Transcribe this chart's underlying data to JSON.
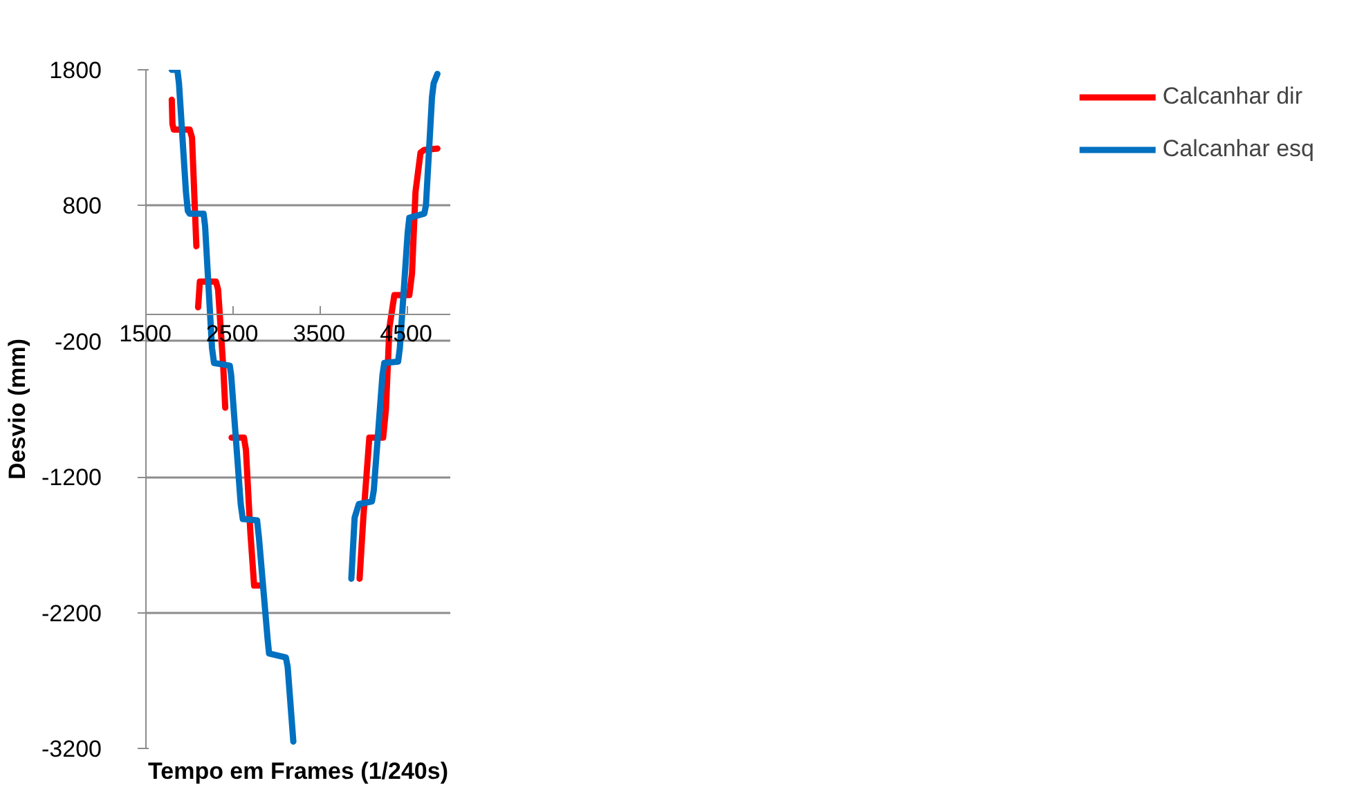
{
  "chart_data": {
    "type": "line",
    "xlabel": "Tempo em Frames (1/240s)",
    "ylabel": "Desvio (mm)",
    "xlim": [
      1500,
      5000
    ],
    "xticks": [
      1500,
      2500,
      3500,
      4500
    ],
    "ylim": [
      -3200,
      1800
    ],
    "yticks": [
      -3200,
      -2200,
      -1200,
      -200,
      800,
      1800
    ],
    "grid": "y",
    "legend": "right",
    "marker": "none",
    "line_style": "solid",
    "series": [
      {
        "name": "Calcanhar dir",
        "color": "#ff0000",
        "x": [
          1797,
          1805,
          1820,
          1900,
          2003,
          2030,
          2080,
          2095,
          2100,
          2120,
          2180,
          2305,
          2330,
          2390,
          2412,
          2450,
          2485,
          2560,
          2627,
          2650,
          2700,
          2744,
          2780,
          2830,
          3400,
          3957,
          4000,
          4069,
          4100,
          4228,
          4260,
          4300,
          4357,
          4400,
          4529,
          4560,
          4600,
          4658,
          4700,
          4852
        ],
        "values": [
          1580,
          1400,
          1360,
          1360,
          1360,
          1300,
          500,
          null,
          50,
          240,
          240,
          240,
          180,
          -400,
          -690,
          null,
          -910,
          -910,
          -910,
          -1000,
          -1600,
          -2000,
          -2000,
          -2000,
          null,
          -1950,
          -1500,
          -910,
          -910,
          -910,
          -700,
          -100,
          140,
          140,
          140,
          300,
          900,
          1190,
          1210,
          1220
        ]
      },
      {
        "name": "Calcanhar esq",
        "color": "#0070c0",
        "x": [
          1797,
          1861,
          1880,
          1960,
          1982,
          2003,
          2163,
          2180,
          2260,
          2283,
          2464,
          2480,
          2590,
          2614,
          2778,
          2800,
          2900,
          2916,
          3109,
          3130,
          3195,
          3500,
          3862,
          3900,
          3948,
          4099,
          4120,
          4220,
          4241,
          4400,
          4420,
          4510,
          4529,
          4701,
          4720,
          4790,
          4809,
          4852
        ],
        "values": [
          1800,
          1800,
          1700,
          900,
          760,
          740,
          740,
          650,
          -250,
          -360,
          -380,
          -450,
          -1400,
          -1510,
          -1520,
          -1650,
          -2400,
          -2500,
          -2530,
          -2600,
          -3150,
          null,
          -1950,
          -1500,
          -1400,
          -1380,
          -1300,
          -450,
          -360,
          -350,
          -250,
          600,
          710,
          740,
          800,
          1600,
          1700,
          1770
        ]
      }
    ]
  }
}
